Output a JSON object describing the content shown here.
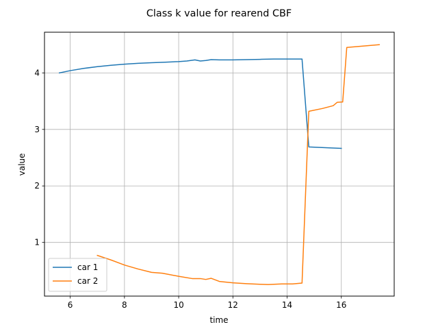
{
  "chart_data": {
    "type": "line",
    "title": "Class k value for rearend CBF",
    "xlabel": "time",
    "ylabel": "value",
    "xlim": [
      5.05,
      17.95
    ],
    "ylim": [
      0.05,
      4.72
    ],
    "xticks": [
      6,
      8,
      10,
      12,
      14,
      16
    ],
    "yticks": [
      1,
      2,
      3,
      4
    ],
    "grid": true,
    "legend_position": "lower-left",
    "series": [
      {
        "name": "car 1",
        "color": "#1f77b4",
        "points": [
          [
            5.6,
            4.0
          ],
          [
            6.0,
            4.04
          ],
          [
            6.5,
            4.08
          ],
          [
            7.0,
            4.11
          ],
          [
            7.5,
            4.135
          ],
          [
            8.0,
            4.155
          ],
          [
            8.5,
            4.17
          ],
          [
            9.0,
            4.18
          ],
          [
            9.5,
            4.19
          ],
          [
            10.0,
            4.2
          ],
          [
            10.3,
            4.21
          ],
          [
            10.6,
            4.23
          ],
          [
            10.8,
            4.21
          ],
          [
            11.0,
            4.22
          ],
          [
            11.2,
            4.235
          ],
          [
            11.5,
            4.23
          ],
          [
            12.0,
            4.23
          ],
          [
            12.5,
            4.235
          ],
          [
            13.0,
            4.24
          ],
          [
            13.5,
            4.245
          ],
          [
            14.0,
            4.245
          ],
          [
            14.55,
            4.245
          ],
          [
            14.8,
            2.69
          ],
          [
            15.5,
            2.675
          ],
          [
            16.0,
            2.665
          ]
        ]
      },
      {
        "name": "car 2",
        "color": "#ff7f0e",
        "points": [
          [
            7.0,
            0.77
          ],
          [
            7.5,
            0.69
          ],
          [
            8.0,
            0.6
          ],
          [
            8.5,
            0.53
          ],
          [
            9.0,
            0.47
          ],
          [
            9.4,
            0.455
          ],
          [
            10.0,
            0.4
          ],
          [
            10.5,
            0.36
          ],
          [
            10.8,
            0.36
          ],
          [
            11.0,
            0.345
          ],
          [
            11.2,
            0.365
          ],
          [
            11.5,
            0.31
          ],
          [
            12.0,
            0.285
          ],
          [
            12.5,
            0.27
          ],
          [
            13.0,
            0.26
          ],
          [
            13.3,
            0.255
          ],
          [
            13.8,
            0.265
          ],
          [
            14.2,
            0.265
          ],
          [
            14.55,
            0.28
          ],
          [
            14.8,
            3.32
          ],
          [
            15.3,
            3.37
          ],
          [
            15.7,
            3.42
          ],
          [
            15.85,
            3.48
          ],
          [
            16.05,
            3.485
          ],
          [
            16.2,
            4.45
          ],
          [
            17.4,
            4.5
          ]
        ]
      }
    ]
  }
}
